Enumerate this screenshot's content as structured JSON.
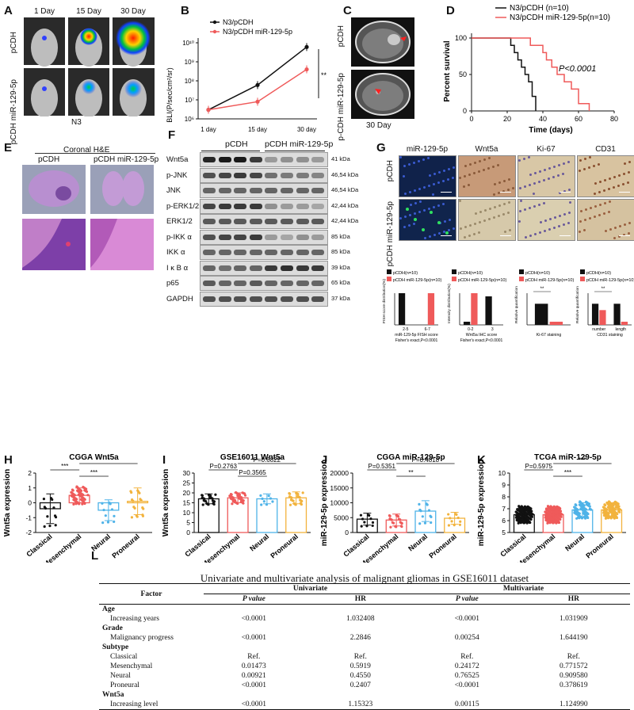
{
  "panels": {
    "A": {
      "letter": "A",
      "days": [
        "1 Day",
        "15 Day",
        "30 Day"
      ],
      "rows": [
        "pCDH",
        "pCDH miR-129-5p"
      ],
      "cell": "N3"
    },
    "B": {
      "letter": "B",
      "legend": [
        "N3/pCDH",
        "N3/pCDH miR-129-5p"
      ],
      "ylabel": "BLI(P/sec/cm²/sr)",
      "yticks": [
        "10⁶",
        "10⁷",
        "10⁸",
        "10⁹",
        "10¹⁰"
      ],
      "xticks": [
        "1 day",
        "15 day",
        "30 day"
      ],
      "sig": "**"
    },
    "C": {
      "letter": "C",
      "rows": [
        "pCDH",
        "p-CDH miR-129-5p"
      ],
      "caption": "30 Day"
    },
    "D": {
      "letter": "D",
      "legend": [
        "N3/pCDH (n=10)",
        "N3/pCDH miR-129-5p(n=10)"
      ],
      "pvalue": "P<0.0001",
      "ylabel": "Percent survival",
      "xlabel": "Time (days)",
      "yticks": [
        "0",
        "50",
        "100"
      ],
      "xticks": [
        "0",
        "20",
        "40",
        "60",
        "80"
      ]
    },
    "E": {
      "letter": "E",
      "title": "Coronal H&E",
      "cols": [
        "pCDH",
        "pCDH miR-129-5p"
      ]
    },
    "F": {
      "letter": "F",
      "groups": [
        "pCDH",
        "pCDH miR-129-5p"
      ],
      "bands": [
        {
          "name": "Wnt5a",
          "kda": "41 kDa"
        },
        {
          "name": "p-JNK",
          "kda": "46,54 kDa"
        },
        {
          "name": "JNK",
          "kda": "46,54 kDa"
        },
        {
          "name": "p-ERK1/2",
          "kda": "42,44 kDa"
        },
        {
          "name": "ERK1/2",
          "kda": "42,44 kDa"
        },
        {
          "name": "p-IKK α",
          "kda": "85 kDa"
        },
        {
          "name": "IKK α",
          "kda": "85 kDa"
        },
        {
          "name": "I κ B α",
          "kda": "39 kDa"
        },
        {
          "name": "p65",
          "kda": "65 kDa"
        },
        {
          "name": "GAPDH",
          "kda": "37 kDa"
        }
      ]
    },
    "G": {
      "letter": "G",
      "cols": [
        "miR-129-5p",
        "Wnt5a",
        "Ki-67",
        "CD31"
      ],
      "rows": [
        "pCDH",
        "pCDH miR-129-5p"
      ],
      "legend": [
        "pCDH(n=10)",
        "pCDH miR-129-5p(n=10)"
      ],
      "mini": [
        {
          "ylabel": "FISH score distribution(%)",
          "xticks": [
            "2-5",
            "6-7"
          ],
          "xlabel": "miR-129-5p FISH score",
          "note": "Fisher's exact,P<0.0001"
        },
        {
          "ylabel": "Intensity distribution(%)",
          "xticks": [
            "0-2",
            "3"
          ],
          "xlabel": "Wnt5a IHC score",
          "note": "Fisher's exact,P<0.0001"
        },
        {
          "ylabel": "Relative quantification",
          "xlabel": "Ki-67 staining",
          "sig": "**"
        },
        {
          "ylabel": "Relative quantification",
          "xticks": [
            "number",
            "length"
          ],
          "xlabel": "CD31 staining",
          "sig": "**"
        }
      ]
    },
    "H": {
      "letter": "H",
      "title": "CGGA Wnt5a",
      "ylabel": "Wnt5a expression",
      "yticks": [
        "-2",
        "-1",
        "0",
        "1",
        "2"
      ],
      "sig": [
        "***",
        "***",
        "*"
      ]
    },
    "I": {
      "letter": "I",
      "title": "GSE16011 Wnt5a",
      "ylabel": "Wnt5a expression",
      "yticks": [
        "0",
        "5",
        "10",
        "15",
        "20",
        "25",
        "30"
      ],
      "sig": [
        "P=0.2763",
        "P=0.3565",
        "P=0.6822"
      ]
    },
    "J": {
      "letter": "J",
      "title": "CGGA miR-129-5p",
      "ylabel": "miR-129-5p expression",
      "yticks": [
        "0",
        "5000",
        "10000",
        "15000",
        "20000"
      ],
      "sig": [
        "P=0.5351",
        "**",
        "P=0.4818"
      ]
    },
    "K": {
      "letter": "K",
      "title": "TCGA miR-129-5p",
      "ylabel": "miR-129-5p expression",
      "yticks": [
        "5",
        "6",
        "7",
        "8",
        "9",
        "10"
      ],
      "sig": [
        "P=0.5975",
        "***",
        "***"
      ]
    },
    "L": {
      "letter": "L",
      "title": "Univariate and multivariate analysis of malignant gliomas in GSE16011 dataset",
      "headers": {
        "factor": "Factor",
        "uni": "Univariate",
        "multi": "Multivariate",
        "p": "P value",
        "hr": "HR"
      },
      "rows": [
        {
          "label": "Age",
          "bold": true
        },
        {
          "label": "Increasing years",
          "up": "<0.0001",
          "uhr": "1.032408",
          "mp": "<0.0001",
          "mhr": "1.031909"
        },
        {
          "label": "Grade",
          "bold": true
        },
        {
          "label": "Malignancy progress",
          "up": "<0.0001",
          "uhr": "2.2846",
          "mp": "0.00254",
          "mhr": "1.644190"
        },
        {
          "label": "Subtype",
          "bold": true
        },
        {
          "label": "Classical",
          "up": "Ref.",
          "uhr": "Ref.",
          "mp": "Ref.",
          "mhr": "Ref."
        },
        {
          "label": "Mesenchymal",
          "up": "0.01473",
          "uhr": "0.5919",
          "mp": "0.24172",
          "mhr": "0.771572"
        },
        {
          "label": "Neural",
          "up": "0.00921",
          "uhr": "0.4550",
          "mp": "0.76525",
          "mhr": "0.909580"
        },
        {
          "label": "Proneural",
          "up": "<0.0001",
          "uhr": "0.2407",
          "mp": "<0.0001",
          "mhr": "0.378619"
        },
        {
          "label": "Wnt5a",
          "bold": true
        },
        {
          "label": "Increasing level",
          "up": "<0.0001",
          "uhr": "1.15323",
          "mp": "0.00115",
          "mhr": "1.124990"
        }
      ]
    }
  },
  "subtypes": [
    "Classical",
    "Mesenchymal",
    "Neural",
    "Proneural"
  ],
  "colors": {
    "pcdh": "#111111",
    "mir": "#ef5a5a",
    "classical": "#111111",
    "mesenchymal": "#ef5a5a",
    "neural": "#4fb3e8",
    "proneural": "#f2b33d"
  },
  "chart_data": [
    {
      "panel": "B",
      "type": "line",
      "x": [
        "1 day",
        "15 day",
        "30 day"
      ],
      "yscale": "log",
      "ylim": [
        1000000,
        10000000000
      ],
      "series": [
        {
          "name": "N3/pCDH",
          "values": [
            3000000,
            60000000,
            6000000000
          ]
        },
        {
          "name": "N3/pCDH miR-129-5p",
          "values": [
            3000000,
            8000000,
            400000000
          ]
        }
      ]
    },
    {
      "panel": "D",
      "type": "line",
      "xlim": [
        0,
        80
      ],
      "ylim": [
        0,
        100
      ],
      "series": [
        {
          "name": "N3/pCDH (n=10)",
          "x": [
            0,
            20,
            22,
            24,
            26,
            28,
            30,
            32,
            34,
            36
          ],
          "values": [
            100,
            100,
            90,
            80,
            70,
            60,
            50,
            40,
            20,
            0
          ]
        },
        {
          "name": "N3/pCDH miR-129-5p(n=10)",
          "x": [
            0,
            28,
            33,
            40,
            42,
            45,
            48,
            52,
            56,
            60,
            66
          ],
          "values": [
            100,
            100,
            90,
            80,
            70,
            60,
            50,
            40,
            30,
            10,
            0
          ]
        }
      ]
    },
    {
      "panel": "G1",
      "type": "bar",
      "categories": [
        "2-5",
        "6-7"
      ],
      "series": [
        {
          "name": "pCDH(n=10)",
          "values": [
            100,
            0
          ]
        },
        {
          "name": "pCDH miR-129-5p(n=10)",
          "values": [
            0,
            100
          ]
        }
      ],
      "ylim": [
        0,
        100
      ]
    },
    {
      "panel": "G2",
      "type": "bar",
      "categories": [
        "0-2",
        "3"
      ],
      "series": [
        {
          "name": "pCDH(n=10)",
          "values": [
            10,
            90
          ]
        },
        {
          "name": "pCDH miR-129-5p(n=10)",
          "values": [
            100,
            0
          ]
        }
      ],
      "ylim": [
        0,
        100
      ]
    },
    {
      "panel": "G3",
      "type": "bar",
      "categories": [
        "Ki-67 staining"
      ],
      "series": [
        {
          "name": "pCDH(n=10)",
          "values": [
            1.0
          ]
        },
        {
          "name": "pCDH miR-129-5p(n=10)",
          "values": [
            0.15
          ]
        }
      ],
      "ylim": [
        0,
        1.5
      ]
    },
    {
      "panel": "G4",
      "type": "bar",
      "categories": [
        "number",
        "length"
      ],
      "series": [
        {
          "name": "pCDH(n=10)",
          "values": [
            1.0,
            1.0
          ]
        },
        {
          "name": "pCDH miR-129-5p(n=10)",
          "values": [
            0.7,
            0.15
          ]
        }
      ],
      "ylim": [
        0,
        1.5
      ]
    },
    {
      "panel": "H",
      "type": "scatter",
      "categories": [
        "Classical",
        "Mesenchymal",
        "Neural",
        "Proneural"
      ],
      "means": [
        -0.4,
        0.5,
        -0.5,
        0.1
      ],
      "sd": [
        1.0,
        0.5,
        0.7,
        0.9
      ],
      "n": [
        12,
        60,
        10,
        18
      ],
      "ylim": [
        -2,
        2
      ]
    },
    {
      "panel": "I",
      "type": "scatter",
      "categories": [
        "Classical",
        "Mesenchymal",
        "Neural",
        "Proneural"
      ],
      "means": [
        17,
        17.5,
        17,
        17.5
      ],
      "sd": [
        2.5,
        2.5,
        2.5,
        3
      ],
      "n": [
        25,
        45,
        8,
        25
      ],
      "ylim": [
        0,
        30
      ]
    },
    {
      "panel": "J",
      "type": "scatter",
      "categories": [
        "Classical",
        "Mesenchymal",
        "Neural",
        "Proneural"
      ],
      "means": [
        4500,
        4200,
        7200,
        4800
      ],
      "sd": [
        2000,
        2000,
        3500,
        2000
      ],
      "n": [
        10,
        20,
        12,
        10
      ],
      "ylim": [
        0,
        20000
      ]
    },
    {
      "panel": "K",
      "type": "scatter",
      "categories": [
        "Classical",
        "Mesenchymal",
        "Neural",
        "Proneural"
      ],
      "means": [
        6.5,
        6.5,
        6.9,
        6.9
      ],
      "sd": [
        0.6,
        0.6,
        0.6,
        0.6
      ],
      "n": [
        120,
        140,
        70,
        90
      ],
      "ylim": [
        5,
        10
      ]
    }
  ]
}
